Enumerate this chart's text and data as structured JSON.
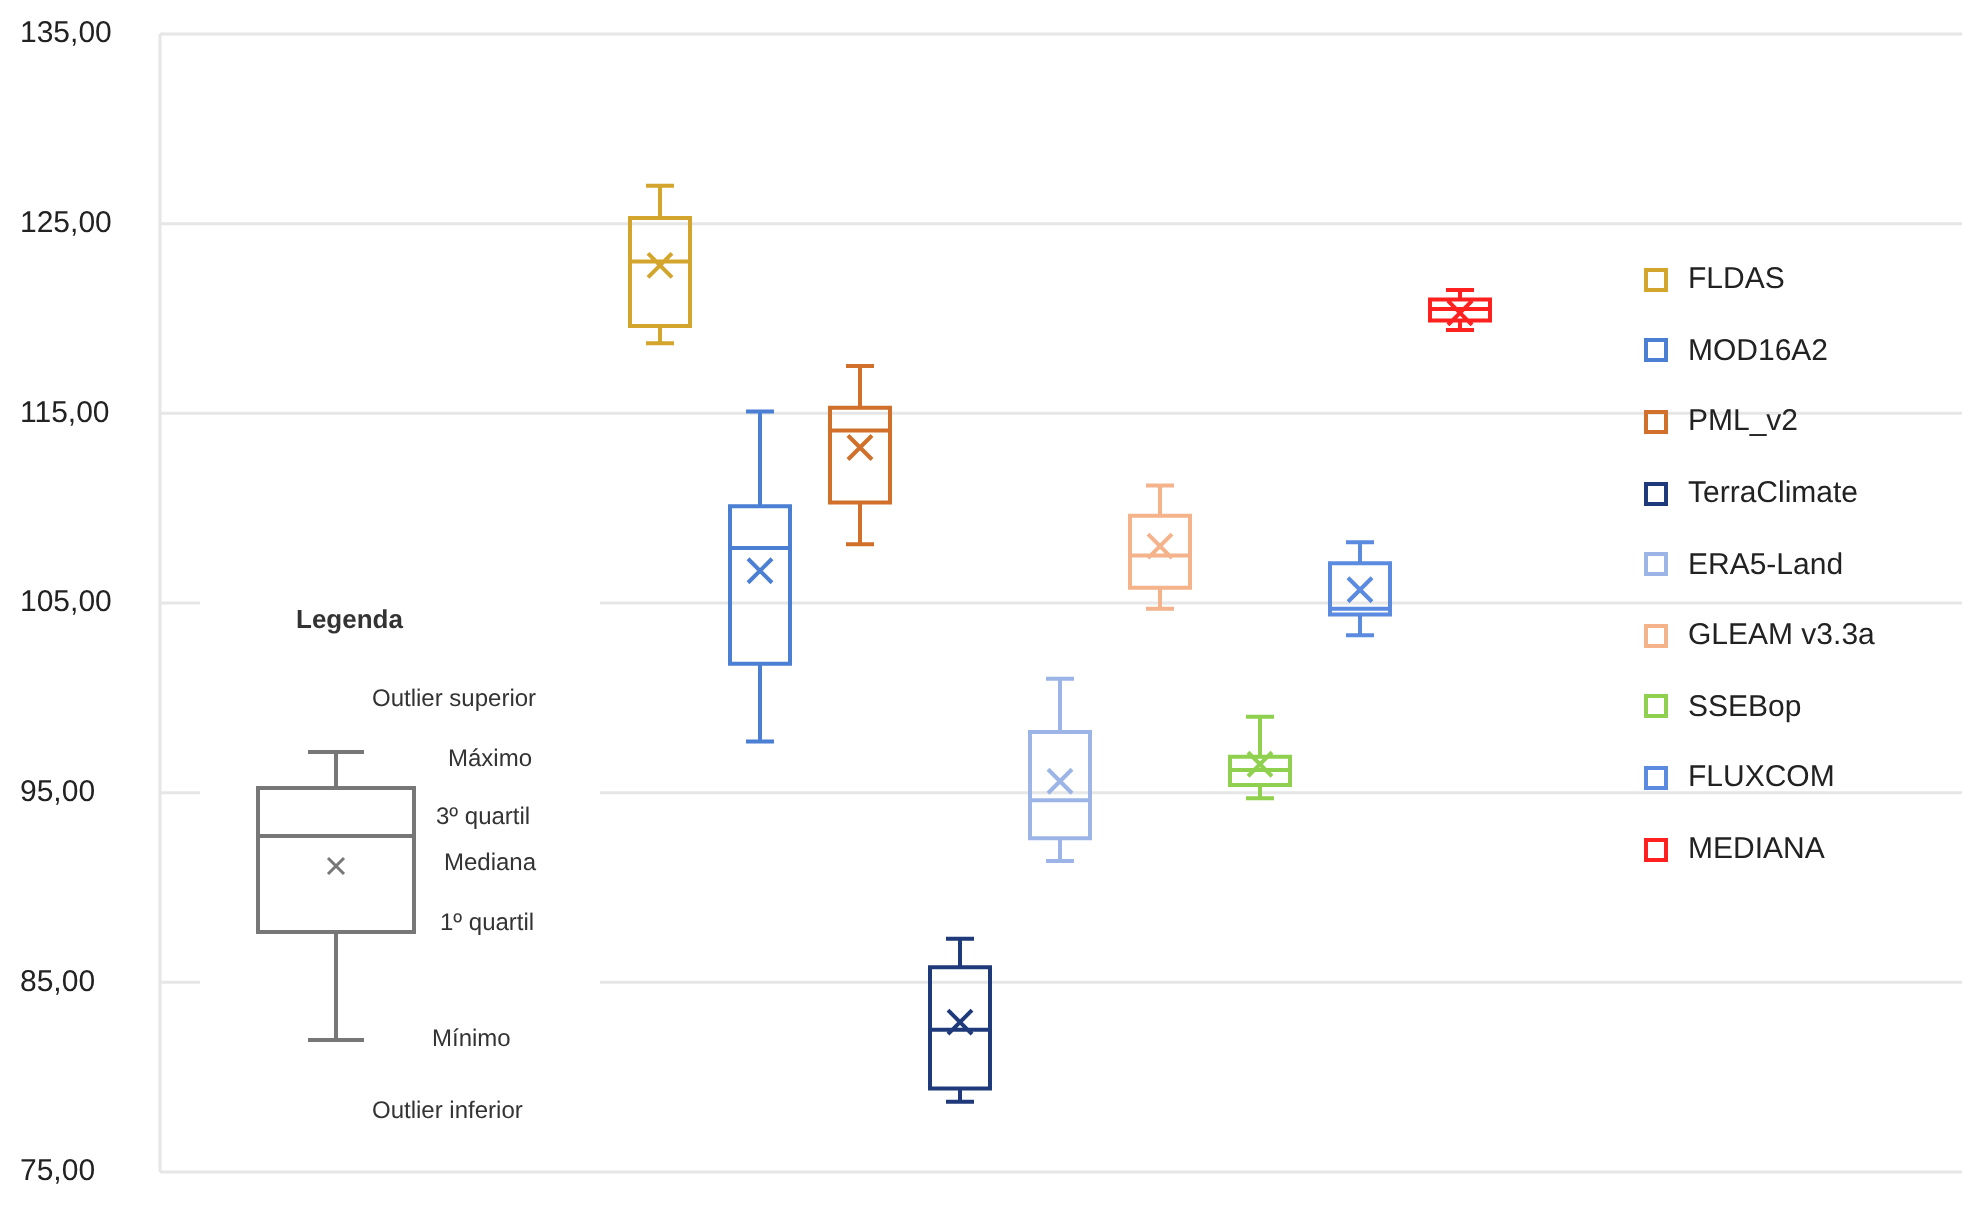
{
  "chart_data": {
    "type": "box",
    "categories": [
      null
    ],
    "ylim": [
      75,
      135
    ],
    "yticks": [
      {
        "value": 75,
        "label": "75,00"
      },
      {
        "value": 85,
        "label": "85,00"
      },
      {
        "value": 95,
        "label": "95,00"
      },
      {
        "value": 105,
        "label": "105,00"
      },
      {
        "value": 115,
        "label": "115,00"
      },
      {
        "value": 125,
        "label": "125,00"
      },
      {
        "value": 135,
        "label": "135,00"
      }
    ],
    "grid": "y",
    "legend": "right",
    "tick_labels": "y",
    "series": [
      {
        "name": "FLDAS",
        "color": "#d4a52c",
        "boxes": [
          {
            "low": 118.7,
            "q1": 119.6,
            "median": 123.0,
            "q3": 125.3,
            "high": 127.0,
            "mean": 122.8
          }
        ]
      },
      {
        "name": "MOD16A2",
        "color": "#4a7fd4",
        "boxes": [
          {
            "low": 97.7,
            "q1": 101.8,
            "median": 107.9,
            "q3": 110.1,
            "high": 115.1,
            "mean": 106.7
          }
        ]
      },
      {
        "name": "PML_v2",
        "color": "#d0702a",
        "boxes": [
          {
            "low": 108.1,
            "q1": 110.3,
            "median": 114.1,
            "q3": 115.3,
            "high": 117.5,
            "mean": 113.2
          }
        ]
      },
      {
        "name": "TerraClimate",
        "color": "#1f3a7a",
        "boxes": [
          {
            "low": 78.7,
            "q1": 79.4,
            "median": 82.5,
            "q3": 85.8,
            "high": 87.3,
            "mean": 82.9
          }
        ]
      },
      {
        "name": "ERA5-Land",
        "color": "#9db5e6",
        "boxes": [
          {
            "low": 91.4,
            "q1": 92.6,
            "median": 94.6,
            "q3": 98.2,
            "high": 101.0,
            "mean": 95.6
          }
        ]
      },
      {
        "name": "GLEAM v3.3a",
        "color": "#f4b38a",
        "boxes": [
          {
            "low": 104.7,
            "q1": 105.8,
            "median": 107.5,
            "q3": 109.6,
            "high": 111.2,
            "mean": 108.0
          }
        ]
      },
      {
        "name": "SSEBop",
        "color": "#8fd14f",
        "boxes": [
          {
            "low": 94.7,
            "q1": 95.4,
            "median": 96.2,
            "q3": 96.9,
            "high": 99.0,
            "mean": 96.5
          }
        ]
      },
      {
        "name": "FLUXCOM",
        "color": "#5b8be0",
        "boxes": [
          {
            "low": 103.3,
            "q1": 104.4,
            "median": 104.7,
            "q3": 107.1,
            "high": 108.2,
            "mean": 105.7
          }
        ]
      },
      {
        "name": "MEDIANA",
        "color": "#ff2020",
        "boxes": [
          {
            "low": 119.4,
            "q1": 119.9,
            "median": 120.5,
            "q3": 121.0,
            "high": 121.5,
            "mean": 120.3
          }
        ]
      }
    ],
    "annotations": [
      "Legenda",
      "Outlier superior",
      "Máximo",
      "3º quartil",
      "Mediana",
      "1º quartil",
      "Mínimo",
      "Outlier inferior"
    ]
  }
}
